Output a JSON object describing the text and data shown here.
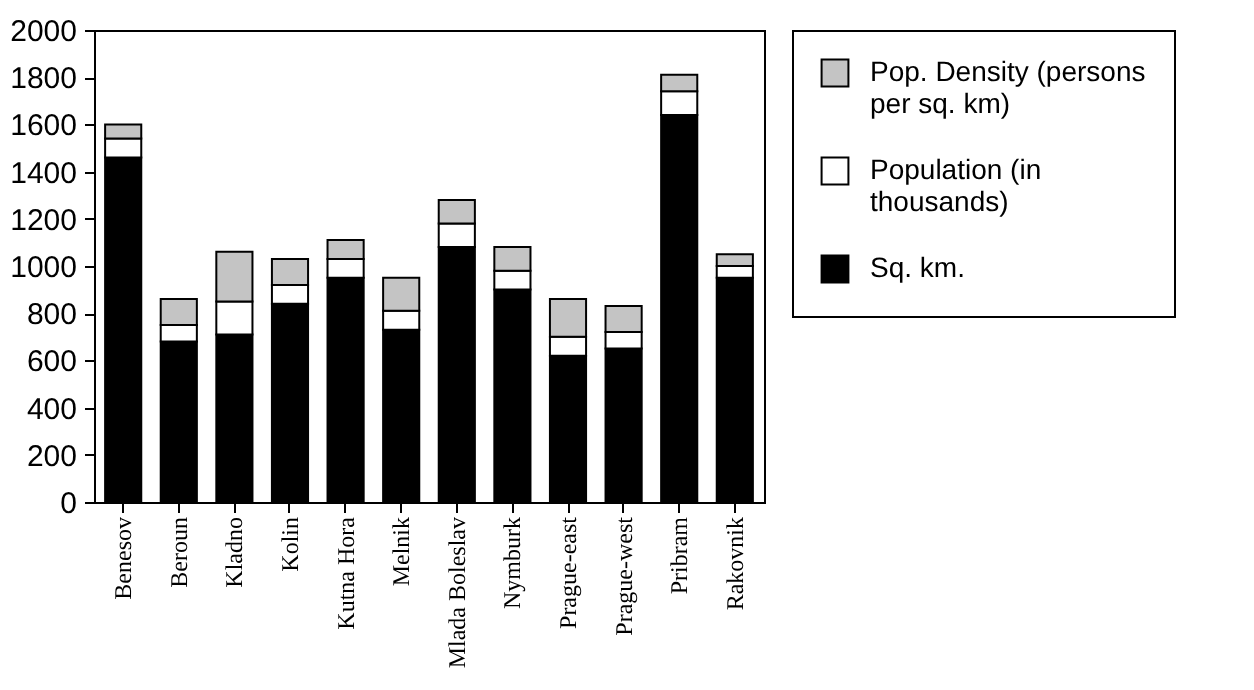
{
  "chart_data": {
    "type": "bar",
    "stacked": true,
    "categories": [
      "Benesov",
      "Beroun",
      "Kladno",
      "Kolin",
      "Kutna Hora",
      "Melnik",
      "Mlada Boleslav",
      "Nymburk",
      "Prague-east",
      "Prague-west",
      "Pribram",
      "Rakovnik"
    ],
    "series": [
      {
        "name": "Sq. km.",
        "color": "#000000",
        "values": [
          1460,
          680,
          710,
          840,
          950,
          730,
          1080,
          900,
          620,
          650,
          1640,
          950
        ]
      },
      {
        "name": "Population (in thousands)",
        "color": "#ffffff",
        "values": [
          80,
          70,
          140,
          80,
          80,
          80,
          100,
          80,
          80,
          70,
          100,
          50
        ]
      },
      {
        "name": "Pop. Density (persons per sq. km)",
        "color": "#c4c4c4",
        "values": [
          60,
          110,
          210,
          110,
          80,
          140,
          100,
          100,
          160,
          110,
          70,
          50
        ]
      }
    ],
    "ylim": [
      0,
      2000
    ],
    "yticks": [
      0,
      200,
      400,
      600,
      800,
      1000,
      1200,
      1400,
      1600,
      1800,
      2000
    ],
    "grid": false,
    "legend": "right"
  }
}
